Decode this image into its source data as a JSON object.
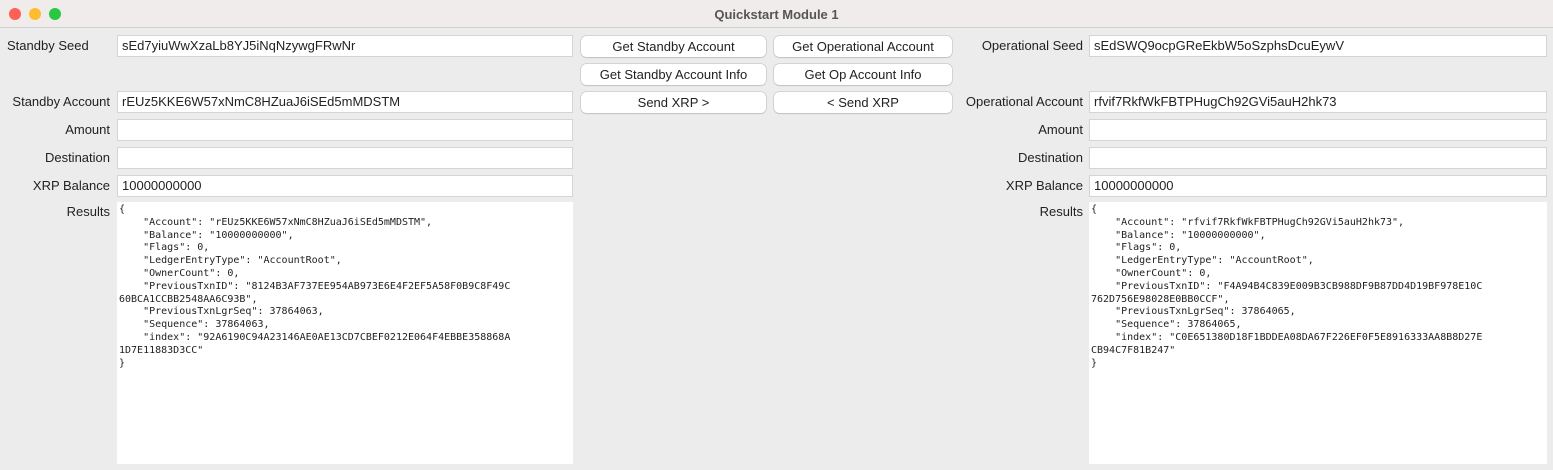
{
  "window": {
    "title": "Quickstart Module 1"
  },
  "standby": {
    "seed_label": "Standby Seed",
    "seed": "sEd7yiuWwXzaLb8YJ5iNqNzywgFRwNr",
    "account_label": "Standby Account",
    "account": "rEUz5KKE6W57xNmC8HZuaJ6iSEd5mMDSTM",
    "amount_label": "Amount",
    "amount": "",
    "destination_label": "Destination",
    "destination": "",
    "balance_label": "XRP Balance",
    "balance": "10000000000",
    "results_label": "Results",
    "results": "{\n    \"Account\": \"rEUz5KKE6W57xNmC8HZuaJ6iSEd5mMDSTM\",\n    \"Balance\": \"10000000000\",\n    \"Flags\": 0,\n    \"LedgerEntryType\": \"AccountRoot\",\n    \"OwnerCount\": 0,\n    \"PreviousTxnID\": \"8124B3AF737EE954AB973E6E4F2EF5A58F0B9C8F49C\n60BCA1CCBB2548AA6C93B\",\n    \"PreviousTxnLgrSeq\": 37864063,\n    \"Sequence\": 37864063,\n    \"index\": \"92A6190C94A23146AE0AE13CD7CBEF0212E064F4EBBE358868A\n1D7E11883D3CC\"\n}"
  },
  "operational": {
    "seed_label": "Operational Seed",
    "seed": "sEdSWQ9ocpGReEkbW5oSzphsDcuEywV",
    "account_label": "Operational Account",
    "account": "rfvif7RkfWkFBTPHugCh92GVi5auH2hk73",
    "amount_label": "Amount",
    "amount": "",
    "destination_label": "Destination",
    "destination": "",
    "balance_label": "XRP Balance",
    "balance": "10000000000",
    "results_label": "Results",
    "results": "{\n    \"Account\": \"rfvif7RkfWkFBTPHugCh92GVi5auH2hk73\",\n    \"Balance\": \"10000000000\",\n    \"Flags\": 0,\n    \"LedgerEntryType\": \"AccountRoot\",\n    \"OwnerCount\": 0,\n    \"PreviousTxnID\": \"F4A94B4C839E009B3CB988DF9B87DD4D19BF978E10C\n762D756E98028E0BB0CCF\",\n    \"PreviousTxnLgrSeq\": 37864065,\n    \"Sequence\": 37864065,\n    \"index\": \"C0E651380D18F1BDDEA08DA67F226EF0F5E8916333AA8B8D27E\nCB94C7F81B247\"\n}"
  },
  "buttons": {
    "get_standby_account": "Get Standby Account",
    "get_operational_account": "Get Operational Account",
    "get_standby_account_info": "Get Standby Account Info",
    "get_op_account_info": "Get Op Account Info",
    "send_xrp_to_op": "Send XRP >",
    "send_xrp_to_standby": "< Send XRP"
  },
  "colors": {
    "close": "#fe5f57",
    "minimize": "#febc2e",
    "zoom": "#28c840"
  }
}
